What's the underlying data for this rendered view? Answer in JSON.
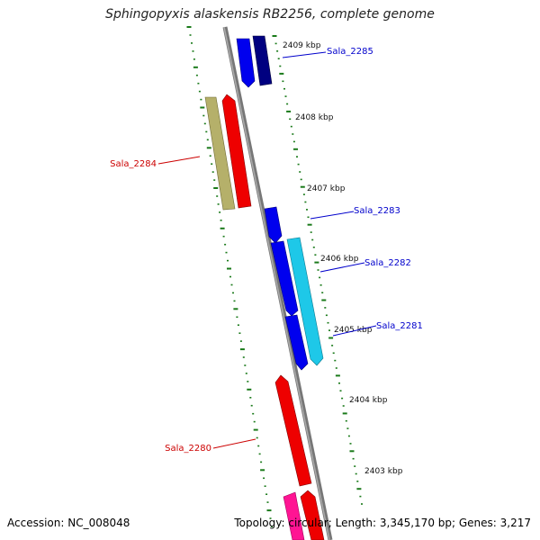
{
  "title": "Sphingopyxis alaskensis RB2256, complete genome",
  "footer": {
    "accession": "Accession: NC_008048",
    "topology": "Topology: circular; Length: 3,345,170 bp; Genes: 3,217"
  },
  "colors": {
    "backbone": "#808080",
    "tick": "#1a7a1a",
    "forward_label": "#0000cc",
    "reverse_label": "#cc0000"
  },
  "kbp_labels": [
    "2409 kbp",
    "2408 kbp",
    "2407 kbp",
    "2406 kbp",
    "2405 kbp",
    "2404 kbp",
    "2403 kbp"
  ],
  "genes": [
    {
      "name": "Sala_2285",
      "strand": "forward",
      "color": "#0000ee"
    },
    {
      "name": "Sala_2285",
      "strand": "forward",
      "color": "#000080",
      "unlabeled": true
    },
    {
      "name": "Sala_2284",
      "strand": "reverse",
      "color": "#b5b06a"
    },
    {
      "name": "Sala_2284",
      "strand": "reverse",
      "color": "#ee0000",
      "unlabeled": true
    },
    {
      "name": "Sala_2283",
      "strand": "forward",
      "color": "#0000ee"
    },
    {
      "name": "Sala_2282",
      "strand": "forward",
      "color": "#1ec8e8"
    },
    {
      "name": "Sala_2281",
      "strand": "forward",
      "color": "#0000ee"
    },
    {
      "name": "Sala_2280",
      "strand": "reverse",
      "color": "#ee0000"
    },
    {
      "name": "",
      "strand": "reverse",
      "color": "#ff1493",
      "unlabeled": true
    },
    {
      "name": "",
      "strand": "reverse",
      "color": "#ee0000",
      "unlabeled": true
    }
  ],
  "labels": [
    "Sala_2285",
    "Sala_2284",
    "Sala_2283",
    "Sala_2282",
    "Sala_2281",
    "Sala_2280"
  ]
}
